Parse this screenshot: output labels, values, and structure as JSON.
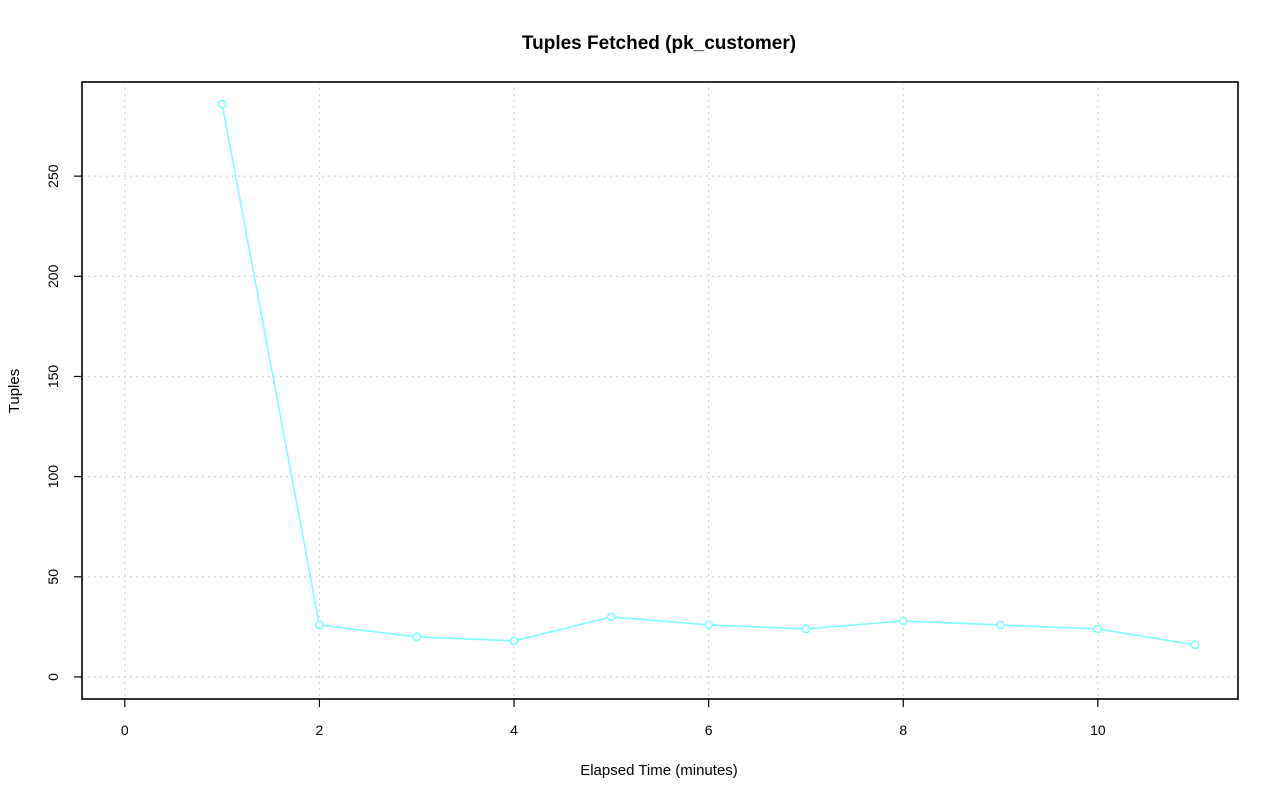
{
  "chart_data": {
    "type": "line",
    "title": "Tuples Fetched (pk_customer)",
    "xlabel": "Elapsed Time (minutes)",
    "ylabel": "Tuples",
    "xlim": [
      -0.44,
      11.44
    ],
    "ylim": [
      -11,
      297
    ],
    "x_ticks": [
      0,
      2,
      4,
      6,
      8,
      10
    ],
    "y_ticks": [
      0,
      50,
      100,
      150,
      200,
      250
    ],
    "grid": true,
    "series": [
      {
        "color": "#7fffff",
        "marker": "open-circle",
        "x": [
          1,
          2,
          3,
          4,
          5,
          6,
          7,
          8,
          9,
          10,
          11
        ],
        "y": [
          286,
          26,
          20,
          18,
          30,
          26,
          24,
          28,
          26,
          24,
          16
        ]
      }
    ]
  }
}
